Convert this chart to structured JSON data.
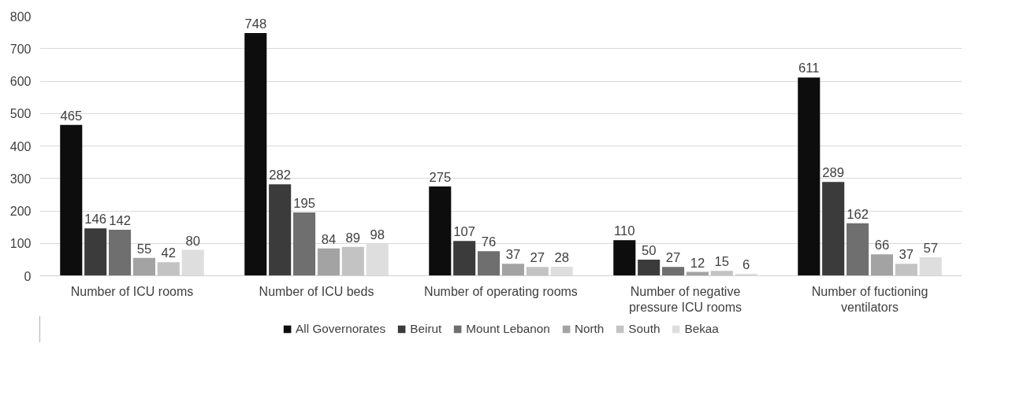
{
  "chart_data": {
    "type": "bar",
    "categories": [
      "Number of ICU rooms",
      "Number of ICU beds",
      "Number of operating rooms",
      "Number of negative pressure ICU rooms",
      "Number of fuctioning ventilators"
    ],
    "series": [
      {
        "name": "All Governorates",
        "color": "#0d0d0d",
        "values": [
          465,
          748,
          275,
          110,
          611
        ]
      },
      {
        "name": "Beirut",
        "color": "#3b3b3b",
        "values": [
          146,
          282,
          107,
          50,
          289
        ]
      },
      {
        "name": "Mount Lebanon",
        "color": "#6f6f6f",
        "values": [
          142,
          195,
          76,
          27,
          162
        ]
      },
      {
        "name": "North",
        "color": "#a3a3a3",
        "values": [
          55,
          84,
          37,
          12,
          66
        ]
      },
      {
        "name": "South",
        "color": "#c3c3c3",
        "values": [
          42,
          89,
          27,
          15,
          37
        ]
      },
      {
        "name": "Bekaa",
        "color": "#dedede",
        "values": [
          80,
          98,
          28,
          6,
          57
        ]
      }
    ],
    "ylim": [
      0,
      800
    ],
    "yticks": [
      0,
      100,
      200,
      300,
      400,
      500,
      600,
      700,
      800
    ],
    "grid": "y",
    "legend": "bottom",
    "data_labels": true
  }
}
